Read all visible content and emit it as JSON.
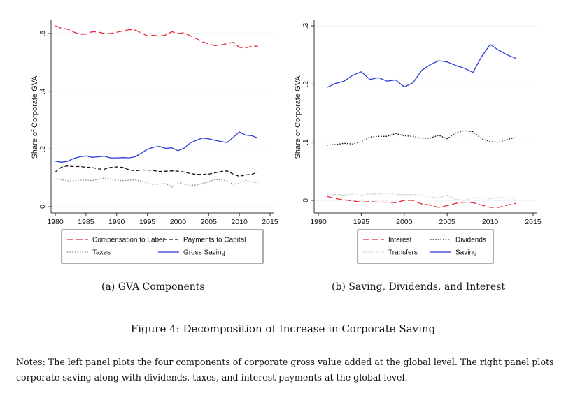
{
  "chart_data": [
    {
      "type": "line",
      "panel_caption": "(a) GVA Components",
      "title": "",
      "xlabel": "",
      "ylabel": "Share of Corporate GVA",
      "xlim": [
        1980,
        2015
      ],
      "ylim": [
        0,
        0.6
      ],
      "xticks": [
        1980,
        1985,
        1990,
        1995,
        2000,
        2005,
        2010,
        2015
      ],
      "xtick_labels": [
        "1980",
        "1985",
        "1990",
        "1995",
        "2000",
        "2005",
        "2010",
        "2015"
      ],
      "yticks": [
        0,
        0.2,
        0.4,
        0.6
      ],
      "ytick_labels": [
        "0",
        ".2",
        ".4",
        ".6"
      ],
      "grid": true,
      "legend_placement": "bottom",
      "x": [
        1980,
        1981,
        1982,
        1983,
        1984,
        1985,
        1986,
        1987,
        1988,
        1989,
        1990,
        1991,
        1992,
        1993,
        1994,
        1995,
        1996,
        1997,
        1998,
        1999,
        2000,
        2001,
        2002,
        2003,
        2004,
        2005,
        2006,
        2007,
        2008,
        2009,
        2010,
        2011,
        2012,
        2013
      ],
      "series": [
        {
          "name": "Compensation to Labor",
          "color": "#e8283a",
          "style": "longdash",
          "values": [
            0.627,
            0.618,
            0.615,
            0.605,
            0.597,
            0.598,
            0.606,
            0.605,
            0.6,
            0.6,
            0.604,
            0.609,
            0.613,
            0.612,
            0.602,
            0.592,
            0.594,
            0.591,
            0.595,
            0.606,
            0.6,
            0.603,
            0.592,
            0.582,
            0.571,
            0.564,
            0.558,
            0.56,
            0.565,
            0.569,
            0.552,
            0.55,
            0.556,
            0.556
          ]
        },
        {
          "name": "Payments to Capital",
          "color": "#111111",
          "style": "dash",
          "values": [
            0.12,
            0.137,
            0.141,
            0.139,
            0.139,
            0.137,
            0.136,
            0.131,
            0.13,
            0.136,
            0.138,
            0.136,
            0.128,
            0.124,
            0.127,
            0.127,
            0.125,
            0.122,
            0.123,
            0.124,
            0.123,
            0.12,
            0.115,
            0.112,
            0.112,
            0.113,
            0.117,
            0.122,
            0.124,
            0.113,
            0.105,
            0.11,
            0.112,
            0.12
          ]
        },
        {
          "name": "Taxes",
          "color": "#8c8c8c",
          "style": "dot",
          "values": [
            0.096,
            0.094,
            0.089,
            0.09,
            0.092,
            0.092,
            0.09,
            0.095,
            0.099,
            0.097,
            0.092,
            0.09,
            0.092,
            0.093,
            0.088,
            0.083,
            0.076,
            0.079,
            0.079,
            0.068,
            0.084,
            0.077,
            0.074,
            0.075,
            0.08,
            0.086,
            0.094,
            0.093,
            0.089,
            0.078,
            0.081,
            0.091,
            0.085,
            0.084
          ]
        },
        {
          "name": "Gross Saving",
          "color": "#2b3bd8",
          "style": "solid",
          "values": [
            0.158,
            0.154,
            0.157,
            0.167,
            0.173,
            0.176,
            0.171,
            0.173,
            0.175,
            0.169,
            0.169,
            0.17,
            0.169,
            0.173,
            0.185,
            0.199,
            0.206,
            0.209,
            0.202,
            0.204,
            0.194,
            0.203,
            0.221,
            0.23,
            0.238,
            0.235,
            0.23,
            0.226,
            0.222,
            0.24,
            0.259,
            0.248,
            0.246,
            0.238
          ]
        }
      ],
      "legend": {
        "columns": 2,
        "order": [
          "Compensation to Labor",
          "Payments to Capital",
          "Taxes",
          "Gross Saving"
        ]
      }
    },
    {
      "type": "line",
      "panel_caption": "(b) Saving, Dividends, and Interest",
      "title": "",
      "xlabel": "",
      "ylabel": "Share of Corporate GVA",
      "xlim": [
        1990,
        2015
      ],
      "ylim": [
        -0.02,
        0.3
      ],
      "xticks": [
        1990,
        1995,
        2000,
        2005,
        2010,
        2015
      ],
      "xtick_labels": [
        "1990",
        "1995",
        "2000",
        "2005",
        "2010",
        "2015"
      ],
      "yticks": [
        0,
        0.1,
        0.2,
        0.3
      ],
      "ytick_labels": [
        "0",
        ".1",
        ".2",
        ".3"
      ],
      "grid": true,
      "legend_placement": "bottom",
      "x": [
        1991,
        1992,
        1993,
        1994,
        1995,
        1996,
        1997,
        1998,
        1999,
        2000,
        2001,
        2002,
        2003,
        2004,
        2005,
        2006,
        2007,
        2008,
        2009,
        2010,
        2011,
        2012,
        2013
      ],
      "series": [
        {
          "name": "Interest",
          "color": "#e8283a",
          "style": "longdash",
          "values": [
            0.007,
            0.003,
            0.001,
            -0.001,
            -0.003,
            -0.002,
            -0.003,
            -0.003,
            -0.004,
            0.0,
            0.0,
            -0.006,
            -0.008,
            -0.012,
            -0.009,
            -0.005,
            -0.003,
            -0.004,
            -0.008,
            -0.012,
            -0.012,
            -0.008,
            -0.005
          ]
        },
        {
          "name": "Dividends",
          "color": "#111111",
          "style": "dot",
          "values": [
            0.095,
            0.096,
            0.098,
            0.097,
            0.101,
            0.109,
            0.11,
            0.11,
            0.115,
            0.111,
            0.11,
            0.107,
            0.107,
            0.112,
            0.106,
            0.116,
            0.12,
            0.118,
            0.106,
            0.101,
            0.1,
            0.105,
            0.108
          ]
        },
        {
          "name": "Transfers",
          "color": "#c8c8c8",
          "style": "dot",
          "values": [
            0.01,
            0.01,
            0.009,
            0.011,
            0.009,
            0.011,
            0.011,
            0.012,
            0.01,
            0.01,
            0.01,
            0.01,
            0.006,
            0.004,
            0.009,
            0.002,
            0.0,
            0.005,
            0.004,
            0.003,
            0.005,
            0.004,
            0.003
          ]
        },
        {
          "name": "Saving",
          "color": "#2b3bd8",
          "style": "solid",
          "values": [
            0.194,
            0.201,
            0.205,
            0.215,
            0.221,
            0.208,
            0.211,
            0.205,
            0.207,
            0.195,
            0.202,
            0.223,
            0.233,
            0.24,
            0.238,
            0.232,
            0.227,
            0.22,
            0.247,
            0.268,
            0.258,
            0.25,
            0.244
          ]
        }
      ],
      "legend": {
        "columns": 2,
        "order": [
          "Interest",
          "Dividends",
          "Transfers",
          "Saving"
        ]
      }
    }
  ],
  "figure": {
    "caption": "Figure 4: Decomposition of Increase in Corporate Saving",
    "notes": "Notes: The left panel plots the four components of corporate gross value added at the global level. The right panel plots corporate saving along with dividends, taxes, and interest payments at the global level."
  }
}
